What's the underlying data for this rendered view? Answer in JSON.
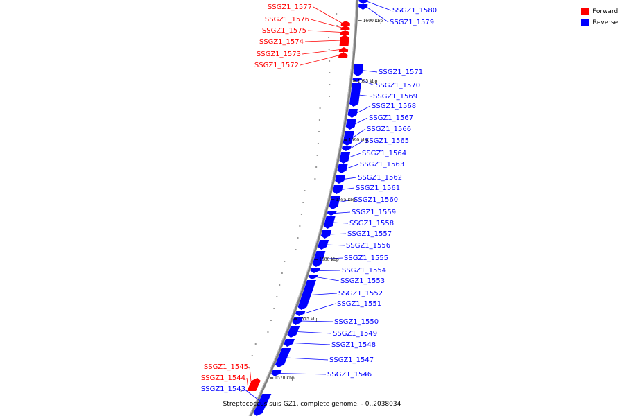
{
  "caption": "Streptococcus suis GZ1, complete genome. - 0..2038034",
  "legend": [
    {
      "label": "Forward",
      "color": "#ff0000"
    },
    {
      "label": "Reverse",
      "color": "#0000ff"
    }
  ],
  "colors": {
    "forward": "#ff0000",
    "reverse": "#0000ff",
    "backbone": "#808080"
  },
  "ticks": [
    "1600 kbp",
    "1595 kbp",
    "1590 kbp",
    "1585 kbp",
    "1580 kbp",
    "1575 kbp",
    "1570 kbp"
  ],
  "genes": [
    {
      "name": "SSGZ1_1580",
      "strand": "reverse"
    },
    {
      "name": "SSGZ1_1579",
      "strand": "reverse"
    },
    {
      "name": "SSGZ1_1577",
      "strand": "forward"
    },
    {
      "name": "SSGZ1_1576",
      "strand": "forward"
    },
    {
      "name": "SSGZ1_1575",
      "strand": "forward"
    },
    {
      "name": "SSGZ1_1574",
      "strand": "forward"
    },
    {
      "name": "SSGZ1_1573",
      "strand": "forward"
    },
    {
      "name": "SSGZ1_1572",
      "strand": "forward"
    },
    {
      "name": "SSGZ1_1571",
      "strand": "reverse"
    },
    {
      "name": "SSGZ1_1570",
      "strand": "reverse"
    },
    {
      "name": "SSGZ1_1569",
      "strand": "reverse"
    },
    {
      "name": "SSGZ1_1568",
      "strand": "reverse"
    },
    {
      "name": "SSGZ1_1567",
      "strand": "reverse"
    },
    {
      "name": "SSGZ1_1566",
      "strand": "reverse"
    },
    {
      "name": "SSGZ1_1565",
      "strand": "reverse"
    },
    {
      "name": "SSGZ1_1564",
      "strand": "reverse"
    },
    {
      "name": "SSGZ1_1563",
      "strand": "reverse"
    },
    {
      "name": "SSGZ1_1562",
      "strand": "reverse"
    },
    {
      "name": "SSGZ1_1561",
      "strand": "reverse"
    },
    {
      "name": "SSGZ1_1560",
      "strand": "reverse"
    },
    {
      "name": "SSGZ1_1559",
      "strand": "reverse"
    },
    {
      "name": "SSGZ1_1558",
      "strand": "reverse"
    },
    {
      "name": "SSGZ1_1557",
      "strand": "reverse"
    },
    {
      "name": "SSGZ1_1556",
      "strand": "reverse"
    },
    {
      "name": "SSGZ1_1555",
      "strand": "reverse"
    },
    {
      "name": "SSGZ1_1554",
      "strand": "reverse"
    },
    {
      "name": "SSGZ1_1553",
      "strand": "reverse"
    },
    {
      "name": "SSGZ1_1552",
      "strand": "reverse"
    },
    {
      "name": "SSGZ1_1551",
      "strand": "reverse"
    },
    {
      "name": "SSGZ1_1550",
      "strand": "reverse"
    },
    {
      "name": "SSGZ1_1549",
      "strand": "reverse"
    },
    {
      "name": "SSGZ1_1548",
      "strand": "reverse"
    },
    {
      "name": "SSGZ1_1547",
      "strand": "reverse"
    },
    {
      "name": "SSGZ1_1546",
      "strand": "reverse"
    },
    {
      "name": "SSGZ1_1545",
      "strand": "forward"
    },
    {
      "name": "SSGZ1_1544",
      "strand": "forward"
    },
    {
      "name": "SSGZ1_1543",
      "strand": "reverse"
    }
  ]
}
